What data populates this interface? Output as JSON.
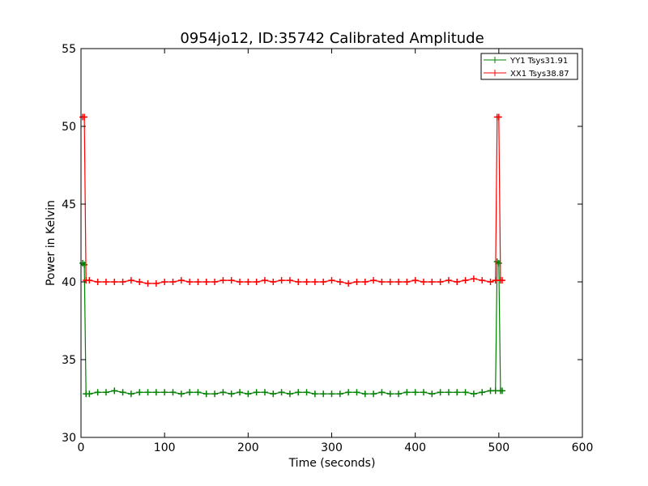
{
  "chart_data": {
    "type": "line",
    "title": "0954jo12, ID:35742 Calibrated Amplitude",
    "xlabel": "Time (seconds)",
    "ylabel": "Power in Kelvin",
    "xlim": [
      0,
      600
    ],
    "ylim": [
      30,
      55
    ],
    "xticks": [
      0,
      100,
      200,
      300,
      400,
      500,
      600
    ],
    "yticks": [
      30,
      35,
      40,
      45,
      50,
      55
    ],
    "grid": false,
    "legend_position": "top-right",
    "series": [
      {
        "name": "YY1 Tsys31.91",
        "color": "#008000",
        "marker": "+",
        "x": [
          2,
          4,
          6,
          10,
          20,
          30,
          40,
          50,
          60,
          70,
          80,
          90,
          100,
          110,
          120,
          130,
          140,
          150,
          160,
          170,
          180,
          190,
          200,
          210,
          220,
          230,
          240,
          250,
          260,
          270,
          280,
          290,
          300,
          310,
          320,
          330,
          340,
          350,
          360,
          370,
          380,
          390,
          400,
          410,
          420,
          430,
          440,
          450,
          460,
          470,
          480,
          490,
          496,
          498,
          500,
          502,
          504
        ],
        "values": [
          41.2,
          41.1,
          32.8,
          32.8,
          32.9,
          32.9,
          33.0,
          32.9,
          32.8,
          32.9,
          32.9,
          32.9,
          32.9,
          32.9,
          32.8,
          32.9,
          32.9,
          32.8,
          32.8,
          32.9,
          32.8,
          32.9,
          32.8,
          32.9,
          32.9,
          32.8,
          32.9,
          32.8,
          32.9,
          32.9,
          32.8,
          32.8,
          32.8,
          32.8,
          32.9,
          32.9,
          32.8,
          32.8,
          32.9,
          32.8,
          32.8,
          32.9,
          32.9,
          32.9,
          32.8,
          32.9,
          32.9,
          32.9,
          32.9,
          32.8,
          32.9,
          33.0,
          33.0,
          41.3,
          41.2,
          33.0,
          33.0
        ]
      },
      {
        "name": "XX1 Tsys38.87",
        "color": "#ff0000",
        "marker": "+",
        "x": [
          2,
          4,
          6,
          10,
          20,
          30,
          40,
          50,
          60,
          70,
          80,
          90,
          100,
          110,
          120,
          130,
          140,
          150,
          160,
          170,
          180,
          190,
          200,
          210,
          220,
          230,
          240,
          250,
          260,
          270,
          280,
          290,
          300,
          310,
          320,
          330,
          340,
          350,
          360,
          370,
          380,
          390,
          400,
          410,
          420,
          430,
          440,
          450,
          460,
          470,
          480,
          490,
          496,
          498,
          500,
          502,
          504
        ],
        "values": [
          50.6,
          50.6,
          40.1,
          40.1,
          40.0,
          40.0,
          40.0,
          40.0,
          40.1,
          40.0,
          39.9,
          39.9,
          40.0,
          40.0,
          40.1,
          40.0,
          40.0,
          40.0,
          40.0,
          40.1,
          40.1,
          40.0,
          40.0,
          40.0,
          40.1,
          40.0,
          40.1,
          40.1,
          40.0,
          40.0,
          40.0,
          40.0,
          40.1,
          40.0,
          39.9,
          40.0,
          40.0,
          40.1,
          40.0,
          40.0,
          40.0,
          40.0,
          40.1,
          40.0,
          40.0,
          40.0,
          40.1,
          40.0,
          40.1,
          40.2,
          40.1,
          40.0,
          40.1,
          50.6,
          50.6,
          40.1,
          40.1
        ]
      }
    ]
  }
}
